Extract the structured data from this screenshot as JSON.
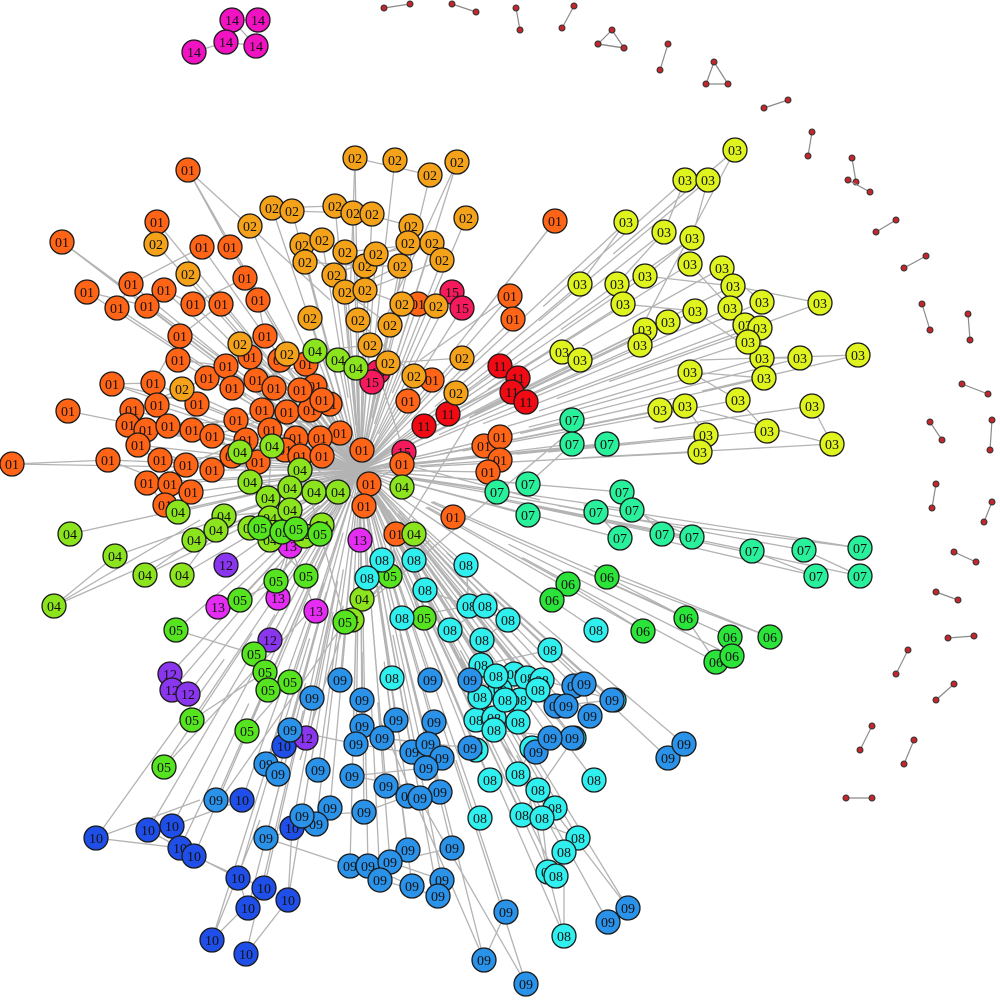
{
  "communities": {
    "01": "#ff6417",
    "02": "#f5a21b",
    "03": "#dff31e",
    "04": "#8ce41f",
    "05": "#55e41f",
    "06": "#2ae43a",
    "07": "#29f09a",
    "08": "#2ff0ee",
    "09": "#2a92e8",
    "10": "#1f4fe8",
    "11": "#f00a13",
    "12": "#8a35ee",
    "13": "#e42cf3",
    "14": "#f112c1",
    "15": "#f41a5c"
  },
  "clusters": [
    {
      "id": "01",
      "count": 80
    },
    {
      "id": "02",
      "count": 40
    },
    {
      "id": "03",
      "count": 38
    },
    {
      "id": "04",
      "count": 30
    },
    {
      "id": "05",
      "count": 18
    },
    {
      "id": "06",
      "count": 9
    },
    {
      "id": "07",
      "count": 16
    },
    {
      "id": "08",
      "count": 45
    },
    {
      "id": "09",
      "count": 55
    },
    {
      "id": "10",
      "count": 12
    },
    {
      "id": "11",
      "count": 5
    },
    {
      "id": "12",
      "count": 5
    },
    {
      "id": "13",
      "count": 5
    },
    {
      "id": "14",
      "count": 5
    },
    {
      "id": "15",
      "count": 4
    }
  ],
  "dot_component_count": 27
}
